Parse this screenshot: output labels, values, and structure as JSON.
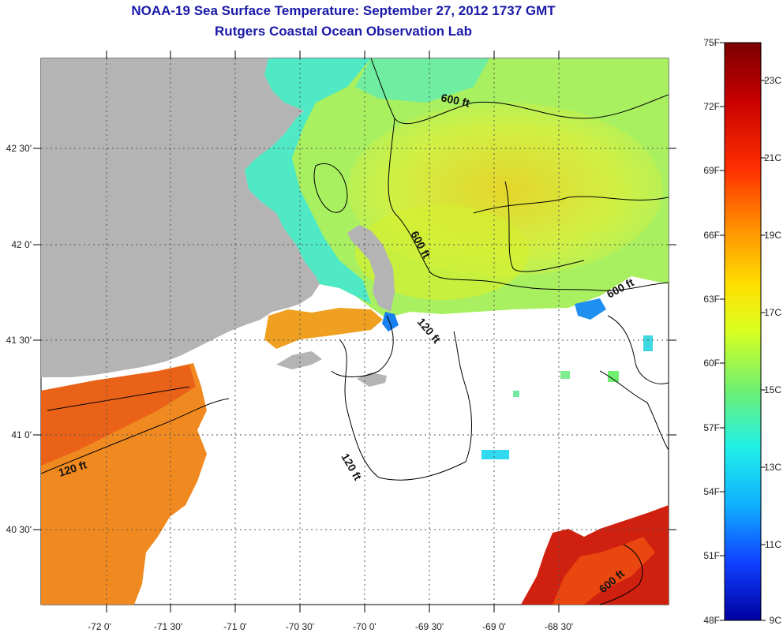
{
  "title": {
    "line1": "NOAA-19 Sea Surface Temperature:  September 27, 2012 1737 GMT",
    "line2": "Rutgers Coastal Ocean Observation Lab"
  },
  "map": {
    "lon_ticks": [
      "-72 0'",
      "-71 30'",
      "-71 0'",
      "-70 30'",
      "-70 0'",
      "-69 30'",
      "-69 0'",
      "-68 30'"
    ],
    "lat_ticks": [
      "42 30'",
      "42 0'",
      "41 30'",
      "41 0'",
      "40 30'"
    ],
    "contour_labels": [
      "600 ft",
      "600 ft",
      "600 ft",
      "120 ft",
      "120 ft",
      "120 ft",
      "600 ft"
    ],
    "colors": {
      "land": "#b4b4b4",
      "no_data": "#ffffff",
      "grid": "#555555"
    }
  },
  "colorbar": {
    "fahrenheit": [
      "75F",
      "72F",
      "69F",
      "66F",
      "63F",
      "60F",
      "57F",
      "54F",
      "51F",
      "48F"
    ],
    "celsius": [
      "23C",
      "21C",
      "19C",
      "17C",
      "15C",
      "13C",
      "11C",
      "9C"
    ],
    "range_f": [
      48,
      75
    ],
    "colors": [
      "#7a0000",
      "#c80000",
      "#ff3000",
      "#ff9000",
      "#ffe000",
      "#d8ff20",
      "#70f070",
      "#20f0e8",
      "#10b0ff",
      "#1040ff",
      "#0000a0"
    ]
  }
}
